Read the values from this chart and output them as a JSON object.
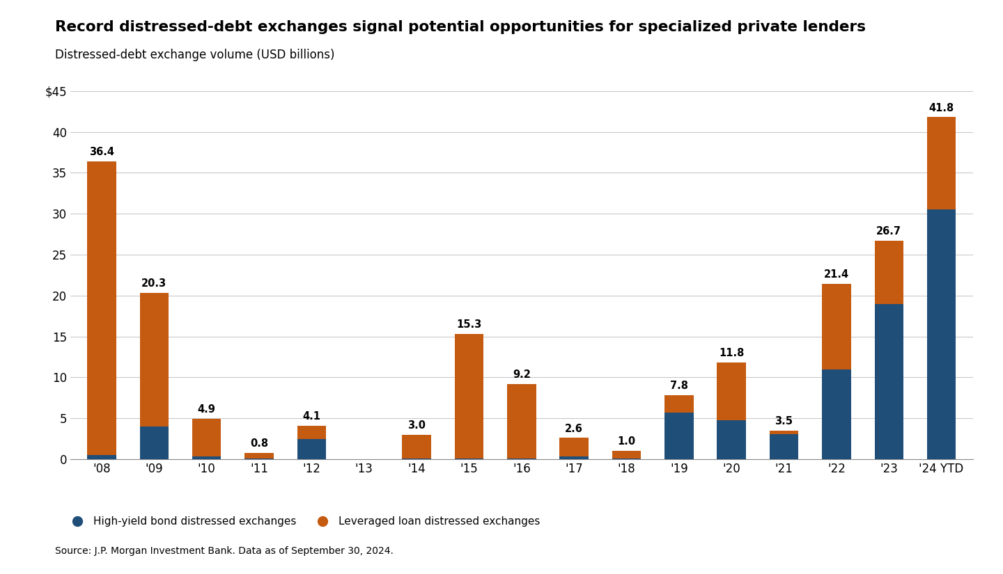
{
  "years": [
    "'08",
    "'09",
    "'10",
    "'11",
    "'12",
    "'13",
    "'14",
    "'15",
    "'16",
    "'17",
    "'18",
    "'19",
    "'20",
    "'21",
    "'22",
    "'23",
    "'24 YTD"
  ],
  "hy_bond": [
    0.5,
    4.0,
    0.3,
    0.1,
    2.5,
    0.0,
    0.1,
    0.1,
    0.1,
    0.3,
    0.1,
    5.7,
    4.8,
    3.1,
    11.0,
    19.0,
    30.5
  ],
  "lev_loan": [
    35.9,
    16.3,
    4.6,
    0.7,
    1.6,
    0.0,
    2.9,
    15.2,
    9.1,
    2.3,
    0.9,
    2.1,
    7.0,
    0.4,
    10.4,
    7.7,
    11.3
  ],
  "totals": [
    36.4,
    20.3,
    4.9,
    0.8,
    4.1,
    0.0,
    3.0,
    15.3,
    9.2,
    2.6,
    1.0,
    7.8,
    11.8,
    3.5,
    21.4,
    26.7,
    41.8
  ],
  "hy_color": "#1f4e79",
  "ll_color": "#c55a11",
  "title": "Record distressed-debt exchanges signal potential opportunities for specialized private lenders",
  "subtitle": "Distressed-debt exchange volume (USD billions)",
  "yticks": [
    0,
    5,
    10,
    15,
    20,
    25,
    30,
    35,
    40,
    45
  ],
  "ytick_labels": [
    "0",
    "5",
    "10",
    "15",
    "20",
    "25",
    "30",
    "35",
    "40",
    "$45"
  ],
  "legend_hy": "High-yield bond distressed exchanges",
  "legend_ll": "Leveraged loan distressed exchanges",
  "source": "Source: J.P. Morgan Investment Bank. Data as of September 30, 2024.",
  "bg_color": "#ffffff",
  "ylim": [
    0,
    47
  ]
}
